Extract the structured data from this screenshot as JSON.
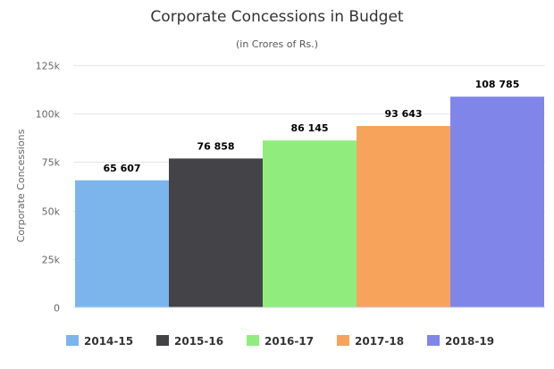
{
  "chart_data": {
    "type": "bar",
    "title": "Corporate Concessions in Budget",
    "subtitle": "(in Crores of Rs.)",
    "ylabel": "Corporate Concessions",
    "xlabel": "",
    "ylim": [
      0,
      125000
    ],
    "yticks": [
      0,
      25000,
      50000,
      75000,
      100000,
      125000
    ],
    "ytick_labels": [
      "0",
      "25k",
      "50k",
      "75k",
      "100k",
      "125k"
    ],
    "grid": true,
    "legend_position": "bottom",
    "series": [
      {
        "name": "2014-15",
        "value": 65607,
        "label": "65 607",
        "color": "#7cb5ec"
      },
      {
        "name": "2015-16",
        "value": 76858,
        "label": "76 858",
        "color": "#434348"
      },
      {
        "name": "2016-17",
        "value": 86145,
        "label": "86 145",
        "color": "#90ed7d"
      },
      {
        "name": "2017-18",
        "value": 93643,
        "label": "93 643",
        "color": "#f7a35c"
      },
      {
        "name": "2018-19",
        "value": 108785,
        "label": "108 785",
        "color": "#8085e9"
      }
    ]
  }
}
